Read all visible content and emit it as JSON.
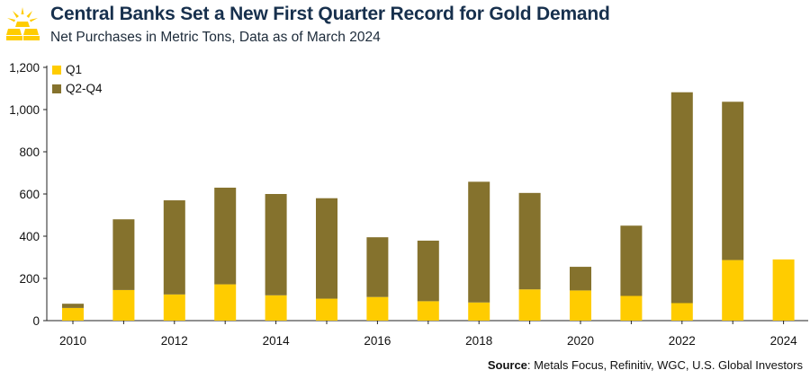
{
  "header": {
    "title": "Central Banks Set a New First Quarter Record for Gold Demand",
    "subtitle": "Net Purchases in Metric Tons, Data as of March 2024"
  },
  "source": {
    "label": "Source",
    "text": ": Metals Focus, Refinitiv, WGC, U.S. Global Investors"
  },
  "colors": {
    "q1": "#ffcc00",
    "q2_q4": "#85722d",
    "axis": "#222222",
    "title": "#17304d",
    "logo": "#ffcc00"
  },
  "icons": {
    "logo": "gold-bars-icon"
  },
  "chart_data": {
    "type": "bar",
    "stacked": true,
    "categories": [
      "2010",
      "2011",
      "2012",
      "2013",
      "2014",
      "2015",
      "2016",
      "2017",
      "2018",
      "2019",
      "2020",
      "2021",
      "2022",
      "2023",
      "2024"
    ],
    "x_tick_labels": [
      "2010",
      "2012",
      "2014",
      "2016",
      "2018",
      "2020",
      "2022",
      "2024"
    ],
    "series": [
      {
        "name": "Q1",
        "values": [
          60,
          145,
          124,
          172,
          120,
          104,
          112,
          92,
          86,
          148,
          143,
          117,
          83,
          287,
          290
        ]
      },
      {
        "name": "Q2-Q4",
        "values": [
          20,
          335,
          446,
          458,
          480,
          476,
          283,
          287,
          572,
          457,
          112,
          333,
          999,
          750,
          0
        ]
      }
    ],
    "ylim": [
      0,
      1200
    ],
    "yticks": [
      "0",
      "200",
      "400",
      "600",
      "800",
      "1,000",
      "1,200"
    ],
    "ytick_values": [
      0,
      200,
      400,
      600,
      800,
      1000,
      1200
    ],
    "xlabel": "",
    "ylabel": "",
    "grid": false,
    "legend": "top-left"
  }
}
